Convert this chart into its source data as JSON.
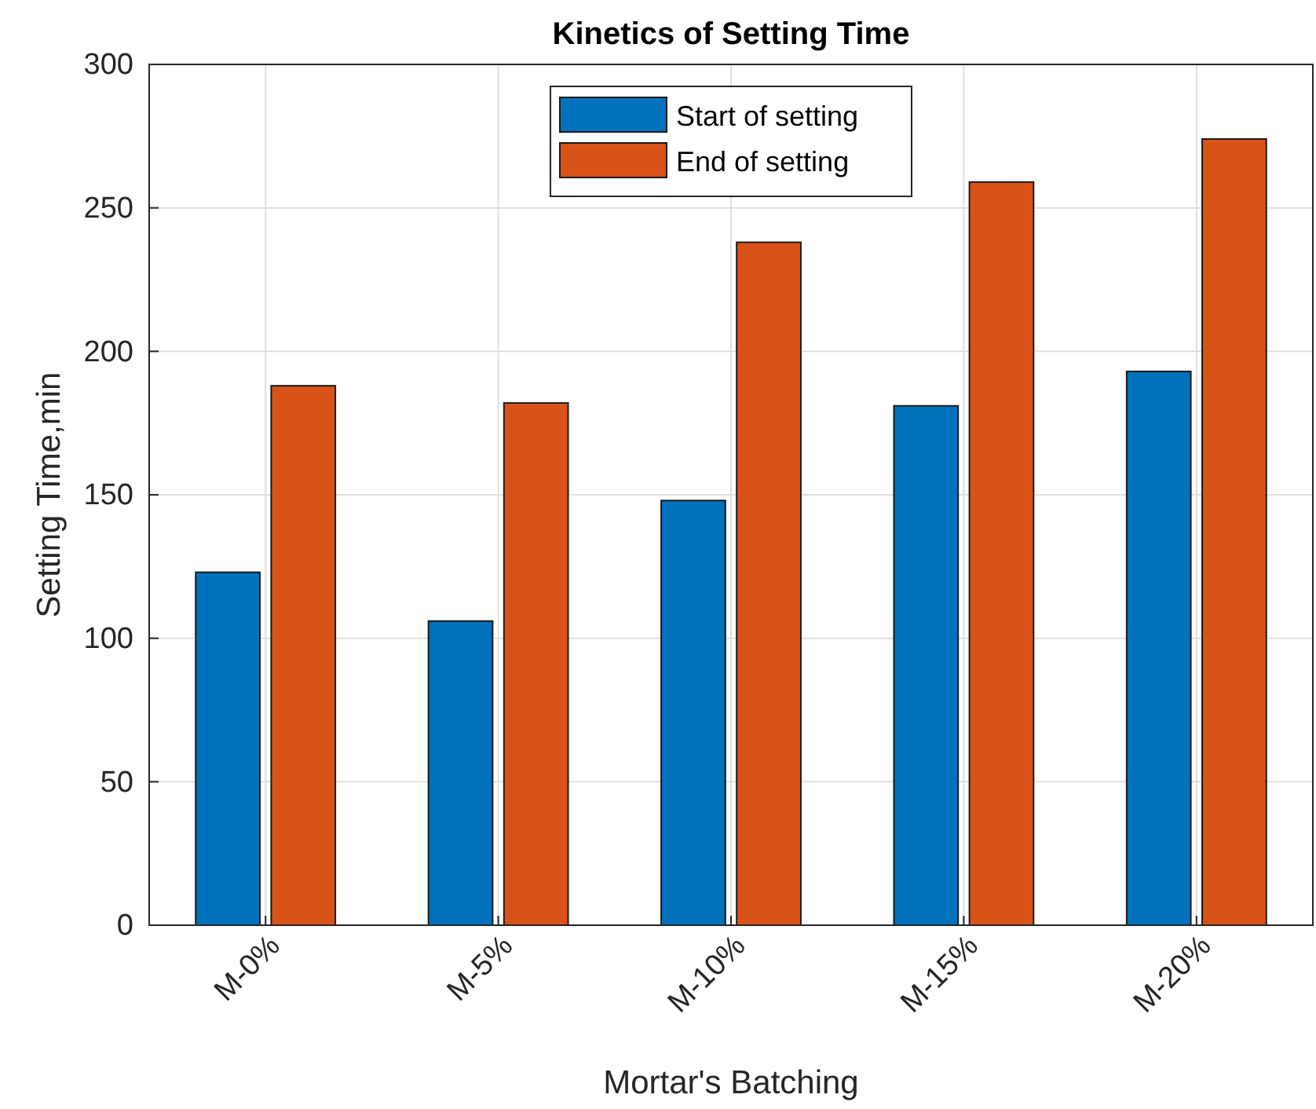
{
  "chart_data": {
    "type": "bar",
    "title": "Kinetics of Setting Time",
    "xlabel": "Mortar's Batching",
    "ylabel": "Setting Time,min",
    "categories": [
      "M-0%",
      "M-5%",
      "M-10%",
      "M-15%",
      "M-20%"
    ],
    "series": [
      {
        "name": "Start of setting",
        "color": "#0072bd",
        "values": [
          123,
          106,
          148,
          181,
          193
        ]
      },
      {
        "name": "End of setting",
        "color": "#d95319",
        "values": [
          188,
          182,
          238,
          259,
          274
        ]
      }
    ],
    "ylim": [
      0,
      300
    ],
    "yticks": [
      0,
      50,
      100,
      150,
      200,
      250,
      300
    ],
    "grid": true,
    "legend": "top"
  }
}
